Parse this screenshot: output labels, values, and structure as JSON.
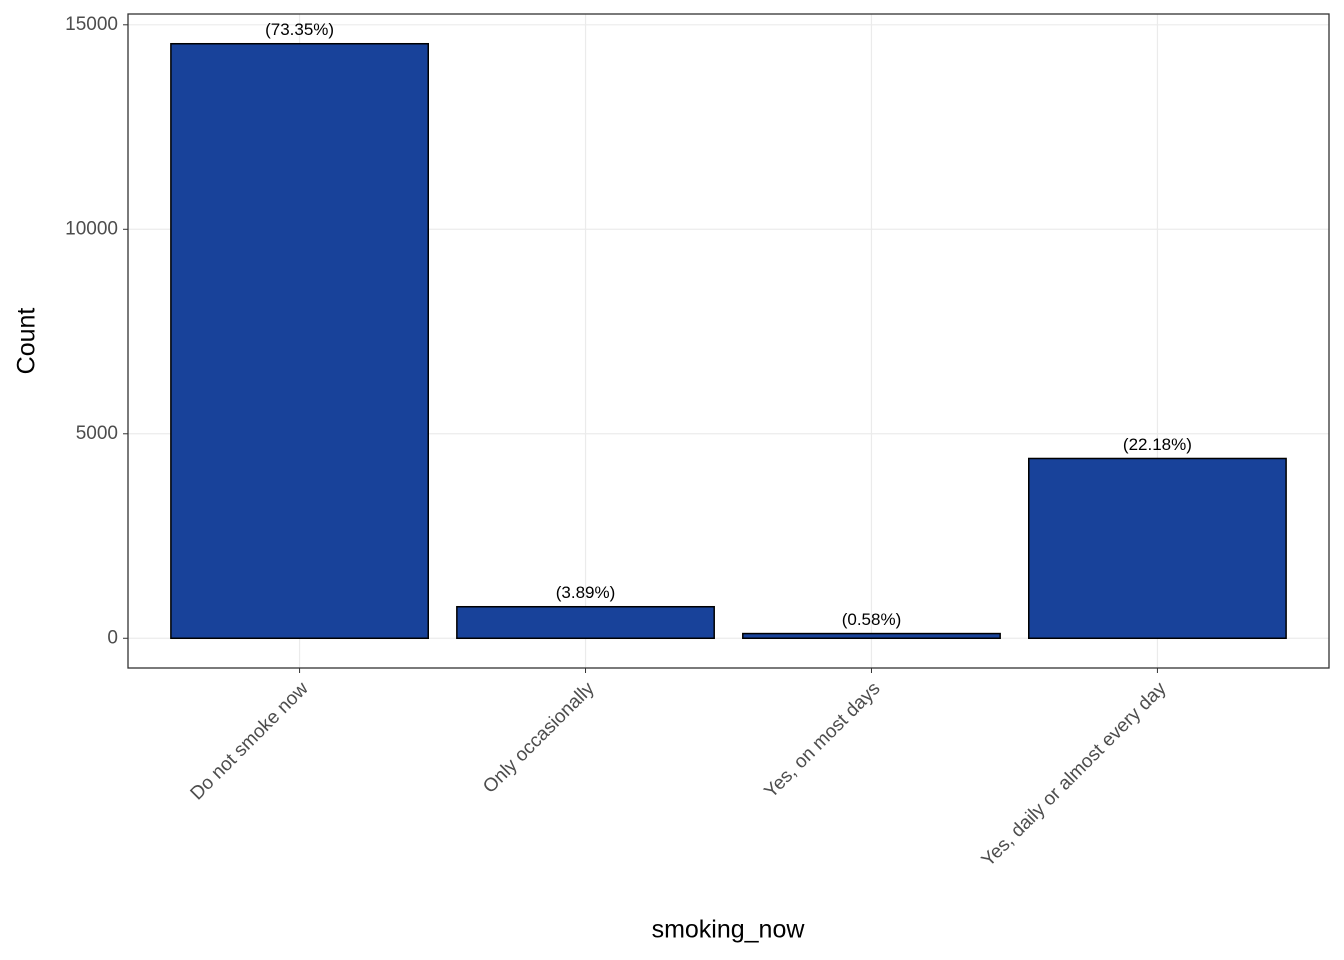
{
  "chart_data": {
    "type": "bar",
    "x_label": "smoking_now",
    "y_label": "Count",
    "categories": [
      "Do not smoke now",
      "Only occasionally",
      "Yes, on most days",
      "Yes, daily or almost every day"
    ],
    "values": [
      14537,
      771,
      115,
      4396
    ],
    "percent_labels": [
      "(73.35%)",
      "(3.89%)",
      "(0.58%)",
      "(22.18%)"
    ],
    "color": "#18429a",
    "ylim": [
      -727,
      15264
    ],
    "yticks": [
      0,
      5000,
      10000,
      15000
    ],
    "grid": true
  }
}
